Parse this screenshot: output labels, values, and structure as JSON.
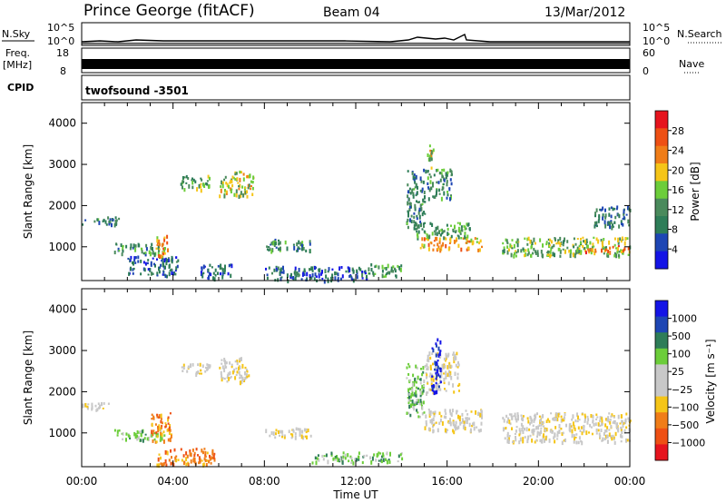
{
  "header": {
    "title": "Prince George (fitACF)",
    "beam": "Beam 04",
    "date": "13/Mar/2012"
  },
  "strips": {
    "nsky_label": "N.Sky",
    "nsearch_label": "N.Search",
    "nsky_ticks": [
      "10^5",
      "10^0"
    ],
    "nsearch_ticks": [
      "10^5",
      "10^0"
    ],
    "freq_label_1": "Freq.",
    "freq_label_2": "[MHz]",
    "freq_ticks": [
      "18",
      "8"
    ],
    "nave_label": "Nave",
    "nave_ticks": [
      "60",
      "0"
    ],
    "cpid_label": "CPID",
    "cpid_value": "twofsound  -3501"
  },
  "colors": {
    "power_scale": [
      "#1414e6",
      "#1e46b4",
      "#2e7d58",
      "#4a8a5c",
      "#6ccd3a",
      "#f5c518",
      "#f07d18",
      "#ee5014",
      "#e6141e"
    ],
    "velocity_scale": [
      "#e6141e",
      "#ee5014",
      "#f07d18",
      "#f5c518",
      "#c8c8c8",
      "#c8c8c8",
      "#6ccd3a",
      "#2e7d58",
      "#1e46b4",
      "#1414e6"
    ]
  },
  "chart_data": [
    {
      "type": "heatmap",
      "panel": "power",
      "ylabel": "Slant Range [km]",
      "yticks": [
        "4000",
        "3000",
        "2000",
        "1000"
      ],
      "colorbar_label": "Power [dB]",
      "colorbar_ticks": [
        "28",
        "24",
        "20",
        "16",
        "12",
        "8",
        "4"
      ],
      "colorbar_range": [
        0,
        32
      ],
      "xlim": [
        0,
        24
      ],
      "ylim": [
        180,
        4500
      ],
      "patches": [
        {
          "t0": 0.0,
          "t1": 1.6,
          "r0": 1550,
          "r1": 1750,
          "v": 9
        },
        {
          "t0": 1.3,
          "t1": 3.6,
          "r0": 850,
          "r1": 1100,
          "v": 11
        },
        {
          "t0": 2.0,
          "t1": 4.2,
          "r0": 300,
          "r1": 800,
          "v": 5
        },
        {
          "t0": 3.2,
          "t1": 3.8,
          "r0": 800,
          "r1": 1300,
          "v": 22
        },
        {
          "t0": 4.3,
          "t1": 5.6,
          "r0": 2400,
          "r1": 2750,
          "v": 14
        },
        {
          "t0": 5.2,
          "t1": 6.6,
          "r0": 250,
          "r1": 600,
          "v": 5
        },
        {
          "t0": 6.0,
          "t1": 7.5,
          "r0": 2250,
          "r1": 2850,
          "v": 18
        },
        {
          "t0": 8.0,
          "t1": 10.0,
          "r0": 900,
          "r1": 1200,
          "v": 10
        },
        {
          "t0": 8.0,
          "t1": 12.5,
          "r0": 200,
          "r1": 550,
          "v": 5
        },
        {
          "t0": 12.5,
          "t1": 14.0,
          "r0": 300,
          "r1": 600,
          "v": 12
        },
        {
          "t0": 14.2,
          "t1": 15.0,
          "r0": 1500,
          "r1": 2900,
          "v": 9
        },
        {
          "t0": 15.0,
          "t1": 16.2,
          "r0": 2200,
          "r1": 2900,
          "v": 10
        },
        {
          "t0": 14.8,
          "t1": 17.5,
          "r0": 950,
          "r1": 1250,
          "v": 22
        },
        {
          "t0": 14.5,
          "t1": 17.0,
          "r0": 1250,
          "r1": 1600,
          "v": 12
        },
        {
          "t0": 18.4,
          "t1": 24.0,
          "r0": 800,
          "r1": 1250,
          "v": 15
        },
        {
          "t0": 22.0,
          "t1": 24.0,
          "r0": 900,
          "r1": 1050,
          "v": 25
        },
        {
          "t0": 15.1,
          "t1": 15.4,
          "r0": 2900,
          "r1": 3500,
          "v": 17
        },
        {
          "t0": 22.4,
          "t1": 24.0,
          "r0": 1500,
          "r1": 2000,
          "v": 8
        }
      ]
    },
    {
      "type": "heatmap",
      "panel": "velocity",
      "ylabel": "Slant Range [km]",
      "yticks": [
        "4000",
        "3000",
        "2000",
        "1000"
      ],
      "colorbar_label": "Velocity [m s⁻¹]",
      "colorbar_ticks": [
        "1000",
        "500",
        "100",
        "25",
        "−25",
        "−100",
        "−500",
        "−1000"
      ],
      "xlabel": "Time UT",
      "xticks": [
        "00:00",
        "04:00",
        "08:00",
        "12:00",
        "16:00",
        "20:00",
        "00:00"
      ],
      "xlim": [
        0,
        24
      ],
      "ylim": [
        180,
        4500
      ],
      "patches": [
        {
          "t0": 0.0,
          "t1": 1.2,
          "r0": 1550,
          "r1": 1750,
          "v": 4
        },
        {
          "t0": 1.4,
          "t1": 3.6,
          "r0": 850,
          "r1": 1100,
          "v": 6
        },
        {
          "t0": 3.0,
          "t1": 3.9,
          "r0": 800,
          "r1": 1500,
          "v": 2
        },
        {
          "t0": 3.2,
          "t1": 5.8,
          "r0": 250,
          "r1": 650,
          "v": 2
        },
        {
          "t0": 4.3,
          "t1": 5.6,
          "r0": 2450,
          "r1": 2700,
          "v": 4
        },
        {
          "t0": 6.0,
          "t1": 7.3,
          "r0": 2250,
          "r1": 2850,
          "v": 4
        },
        {
          "t0": 8.0,
          "t1": 10.0,
          "r0": 900,
          "r1": 1150,
          "v": 4
        },
        {
          "t0": 10.0,
          "t1": 14.0,
          "r0": 300,
          "r1": 550,
          "v": 6
        },
        {
          "t0": 14.2,
          "t1": 15.0,
          "r0": 1400,
          "r1": 2700,
          "v": 6
        },
        {
          "t0": 15.0,
          "t1": 16.5,
          "r0": 2000,
          "r1": 3000,
          "v": 4
        },
        {
          "t0": 15.0,
          "t1": 17.5,
          "r0": 1050,
          "r1": 1600,
          "v": 4
        },
        {
          "t0": 18.4,
          "t1": 24.0,
          "r0": 800,
          "r1": 1500,
          "v": 4
        },
        {
          "t0": 15.3,
          "t1": 15.7,
          "r0": 2000,
          "r1": 3300,
          "v": 9
        }
      ]
    }
  ]
}
